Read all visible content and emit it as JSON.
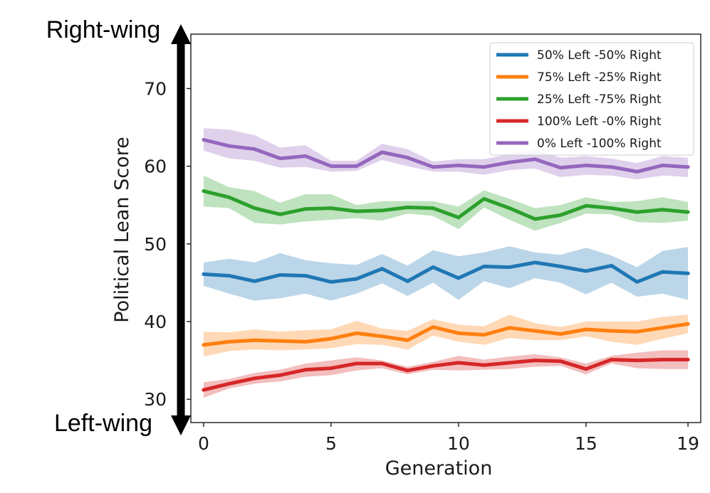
{
  "chart_data": {
    "type": "line",
    "title": "",
    "xlabel": "Generation",
    "ylabel": "Political Lean Score",
    "xlim": [
      -0.5,
      19.5
    ],
    "ylim": [
      27,
      77
    ],
    "xticks": [
      0,
      5,
      10,
      15,
      19
    ],
    "yticks": [
      30,
      40,
      50,
      60,
      70
    ],
    "grid": false,
    "legend_position": "top-right",
    "top_annotation": "Right-wing",
    "bottom_annotation": "Left-wing",
    "x": [
      0,
      1,
      2,
      3,
      4,
      5,
      6,
      7,
      8,
      9,
      10,
      11,
      12,
      13,
      14,
      15,
      16,
      17,
      18,
      19
    ],
    "series": [
      {
        "name": "50% Left -50% Right",
        "color": "#1f77b4",
        "values": [
          46.1,
          45.9,
          45.2,
          46.0,
          45.9,
          45.1,
          45.5,
          46.8,
          45.2,
          47.0,
          45.6,
          47.1,
          47.0,
          47.6,
          47.1,
          46.5,
          47.2,
          45.1,
          46.4,
          46.2
        ],
        "lower": [
          44.6,
          43.6,
          42.7,
          43.0,
          43.6,
          42.7,
          43.6,
          44.9,
          43.3,
          45.0,
          42.8,
          45.2,
          44.3,
          45.6,
          45.0,
          43.5,
          45.0,
          43.2,
          43.6,
          42.8
        ],
        "upper": [
          47.6,
          48.1,
          47.6,
          48.8,
          47.9,
          47.5,
          47.3,
          48.7,
          47.2,
          49.2,
          48.4,
          48.9,
          49.7,
          48.9,
          48.6,
          49.5,
          48.5,
          47.0,
          49.1,
          49.6
        ]
      },
      {
        "name": "75% Left -25% Right",
        "color": "#ff7f0e",
        "values": [
          37.0,
          37.4,
          37.6,
          37.5,
          37.4,
          37.8,
          38.5,
          38.1,
          37.6,
          39.3,
          38.5,
          38.3,
          39.2,
          38.8,
          38.4,
          39.0,
          38.8,
          38.7,
          39.2,
          39.7
        ],
        "lower": [
          35.5,
          36.2,
          36.4,
          36.3,
          36.4,
          36.6,
          37.1,
          37.0,
          36.4,
          38.2,
          37.4,
          37.0,
          37.9,
          37.6,
          37.6,
          38.1,
          37.4,
          37.0,
          37.8,
          38.5
        ],
        "upper": [
          38.7,
          38.6,
          39.0,
          38.7,
          38.9,
          39.0,
          40.1,
          39.1,
          38.8,
          40.3,
          39.6,
          39.4,
          40.9,
          39.8,
          39.3,
          40.0,
          40.0,
          40.0,
          40.6,
          40.9
        ]
      },
      {
        "name": "25% Left -75% Right",
        "color": "#2ca02c",
        "values": [
          56.8,
          56.0,
          54.6,
          53.8,
          54.5,
          54.6,
          54.2,
          54.3,
          54.7,
          54.6,
          53.4,
          55.8,
          54.6,
          53.2,
          53.7,
          54.9,
          54.6,
          54.1,
          54.4,
          54.1
        ],
        "lower": [
          54.8,
          54.6,
          52.7,
          52.5,
          52.9,
          53.1,
          53.3,
          53.0,
          53.9,
          53.6,
          51.9,
          54.7,
          53.1,
          51.7,
          52.7,
          53.9,
          53.8,
          52.8,
          52.7,
          53.0
        ],
        "upper": [
          58.8,
          57.3,
          56.8,
          55.3,
          56.4,
          56.4,
          55.0,
          55.5,
          55.5,
          55.5,
          54.8,
          56.9,
          55.8,
          54.6,
          55.0,
          56.0,
          55.4,
          55.5,
          56.0,
          55.4
        ]
      },
      {
        "name": "100% Left -0% Right",
        "color": "#d62728",
        "values": [
          31.2,
          32.0,
          32.7,
          33.1,
          33.8,
          34.0,
          34.6,
          34.6,
          33.7,
          34.3,
          34.7,
          34.4,
          34.7,
          35.0,
          34.9,
          33.9,
          35.1,
          35.0,
          35.1,
          35.1
        ],
        "lower": [
          30.2,
          31.4,
          32.0,
          32.3,
          32.9,
          33.1,
          33.7,
          34.0,
          33.2,
          33.8,
          33.7,
          33.8,
          33.9,
          34.2,
          34.3,
          33.2,
          34.6,
          34.0,
          33.9,
          33.9
        ],
        "upper": [
          32.2,
          32.6,
          33.4,
          33.8,
          34.6,
          35.0,
          35.4,
          35.0,
          34.2,
          34.8,
          35.6,
          35.1,
          35.5,
          35.8,
          35.4,
          34.6,
          35.6,
          36.0,
          36.3,
          36.3
        ]
      },
      {
        "name": "0% Left -100% Right",
        "color": "#9467bd",
        "values": [
          63.4,
          62.6,
          62.2,
          61.0,
          61.3,
          60.0,
          60.0,
          61.8,
          61.1,
          59.9,
          60.1,
          59.9,
          60.5,
          60.9,
          59.8,
          60.1,
          59.9,
          59.3,
          60.1,
          59.9
        ],
        "lower": [
          62.0,
          61.0,
          60.7,
          59.8,
          59.9,
          59.3,
          59.4,
          60.8,
          60.0,
          59.3,
          59.3,
          58.9,
          59.5,
          59.7,
          58.6,
          58.9,
          58.8,
          58.3,
          58.8,
          58.6
        ],
        "upper": [
          64.9,
          64.7,
          64.0,
          62.4,
          62.7,
          60.7,
          60.7,
          62.9,
          62.2,
          60.6,
          60.9,
          60.9,
          61.6,
          62.1,
          61.1,
          61.3,
          61.0,
          60.4,
          61.3,
          61.1
        ]
      }
    ]
  }
}
